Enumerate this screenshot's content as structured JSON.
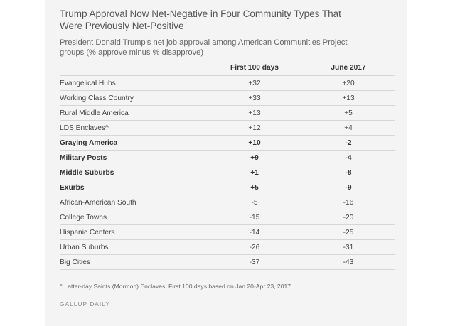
{
  "header": {
    "title": "Trump Approval Now Net-Negative in Four Community Types That Were Previously Net-Positive",
    "subtitle": "President Donald Trump's net job approval among American Communities Project groups (% approve minus % disapprove)"
  },
  "chart_data": {
    "type": "table",
    "columns": [
      "",
      "First 100 days",
      "June 2017"
    ],
    "rows": [
      {
        "label": "Evangelical Hubs",
        "first_100_days": "+32",
        "june_2017": "+20",
        "bold": false
      },
      {
        "label": "Working Class Country",
        "first_100_days": "+33",
        "june_2017": "+13",
        "bold": false
      },
      {
        "label": "Rural Middle America",
        "first_100_days": "+13",
        "june_2017": "+5",
        "bold": false
      },
      {
        "label": "LDS Enclaves^",
        "first_100_days": "+12",
        "june_2017": "+4",
        "bold": false
      },
      {
        "label": "Graying America",
        "first_100_days": "+10",
        "june_2017": "-2",
        "bold": true
      },
      {
        "label": "Military Posts",
        "first_100_days": "+9",
        "june_2017": "-4",
        "bold": true
      },
      {
        "label": "Middle Suburbs",
        "first_100_days": "+1",
        "june_2017": "-8",
        "bold": true
      },
      {
        "label": "Exurbs",
        "first_100_days": "+5",
        "june_2017": "-9",
        "bold": true
      },
      {
        "label": "African-American South",
        "first_100_days": "-5",
        "june_2017": "-16",
        "bold": false
      },
      {
        "label": "College Towns",
        "first_100_days": "-15",
        "june_2017": "-20",
        "bold": false
      },
      {
        "label": "Hispanic Centers",
        "first_100_days": "-14",
        "june_2017": "-25",
        "bold": false
      },
      {
        "label": "Urban Suburbs",
        "first_100_days": "-26",
        "june_2017": "-31",
        "bold": false
      },
      {
        "label": "Big Cities",
        "first_100_days": "-37",
        "june_2017": "-43",
        "bold": false
      }
    ]
  },
  "footer": {
    "footnote": "^ Latter-day Saints (Mormon) Enclaves; First 100 days based on Jan 20-Apr 23, 2017.",
    "source": "GALLUP DAILY"
  }
}
